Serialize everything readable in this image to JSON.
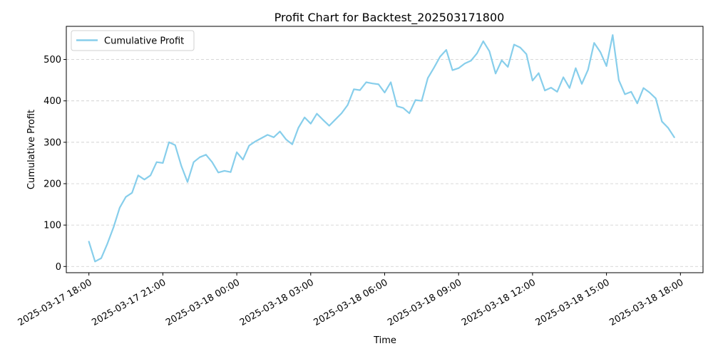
{
  "chart_data": {
    "type": "line",
    "title": "Profit Chart for Backtest_202503171800",
    "xlabel": "Time",
    "ylabel": "Cumulative Profit",
    "legend": {
      "position": "top-left",
      "entries": [
        "Cumulative Profit"
      ]
    },
    "grid": {
      "y": true,
      "x": false,
      "style": "dashed"
    },
    "colors": {
      "series": "#87ceeb",
      "grid": "#cccccc",
      "axis": "#000000"
    },
    "x_ticks": [
      "2025-03-17 18:00",
      "2025-03-17 21:00",
      "2025-03-18 00:00",
      "2025-03-18 03:00",
      "2025-03-18 06:00",
      "2025-03-18 09:00",
      "2025-03-18 12:00",
      "2025-03-18 15:00",
      "2025-03-18 18:00"
    ],
    "y_ticks": [
      0,
      100,
      200,
      300,
      400,
      500
    ],
    "xlim": [
      "2025-03-17 17:05",
      "2025-03-18 18:55"
    ],
    "ylim": [
      -15,
      580
    ],
    "series": [
      {
        "name": "Cumulative Profit",
        "x": [
          "2025-03-17 18:00",
          "2025-03-17 18:15",
          "2025-03-17 18:30",
          "2025-03-17 18:45",
          "2025-03-17 19:00",
          "2025-03-17 19:15",
          "2025-03-17 19:30",
          "2025-03-17 19:45",
          "2025-03-17 20:00",
          "2025-03-17 20:15",
          "2025-03-17 20:30",
          "2025-03-17 20:45",
          "2025-03-17 21:00",
          "2025-03-17 21:15",
          "2025-03-17 21:30",
          "2025-03-17 21:45",
          "2025-03-17 22:00",
          "2025-03-17 22:15",
          "2025-03-17 22:30",
          "2025-03-17 22:45",
          "2025-03-17 23:00",
          "2025-03-17 23:15",
          "2025-03-17 23:30",
          "2025-03-17 23:45",
          "2025-03-18 00:00",
          "2025-03-18 00:15",
          "2025-03-18 00:30",
          "2025-03-18 00:45",
          "2025-03-18 01:00",
          "2025-03-18 01:15",
          "2025-03-18 01:30",
          "2025-03-18 01:45",
          "2025-03-18 02:00",
          "2025-03-18 02:15",
          "2025-03-18 02:30",
          "2025-03-18 02:45",
          "2025-03-18 03:00",
          "2025-03-18 03:15",
          "2025-03-18 03:30",
          "2025-03-18 03:45",
          "2025-03-18 04:00",
          "2025-03-18 04:15",
          "2025-03-18 04:30",
          "2025-03-18 04:45",
          "2025-03-18 05:00",
          "2025-03-18 05:15",
          "2025-03-18 05:30",
          "2025-03-18 05:45",
          "2025-03-18 06:00",
          "2025-03-18 06:15",
          "2025-03-18 06:30",
          "2025-03-18 06:45",
          "2025-03-18 07:00",
          "2025-03-18 07:15",
          "2025-03-18 07:30",
          "2025-03-18 07:45",
          "2025-03-18 08:00",
          "2025-03-18 08:15",
          "2025-03-18 08:30",
          "2025-03-18 08:45",
          "2025-03-18 09:00",
          "2025-03-18 09:15",
          "2025-03-18 09:30",
          "2025-03-18 09:45",
          "2025-03-18 10:00",
          "2025-03-18 10:15",
          "2025-03-18 10:30",
          "2025-03-18 10:45",
          "2025-03-18 11:00",
          "2025-03-18 11:15",
          "2025-03-18 11:30",
          "2025-03-18 11:45",
          "2025-03-18 12:00",
          "2025-03-18 12:15",
          "2025-03-18 12:30",
          "2025-03-18 12:45",
          "2025-03-18 13:00",
          "2025-03-18 13:15",
          "2025-03-18 13:30",
          "2025-03-18 13:45",
          "2025-03-18 14:00",
          "2025-03-18 14:15",
          "2025-03-18 14:30",
          "2025-03-18 14:45",
          "2025-03-18 15:00",
          "2025-03-18 15:15",
          "2025-03-18 15:30",
          "2025-03-18 15:45",
          "2025-03-18 16:00",
          "2025-03-18 16:15",
          "2025-03-18 16:30",
          "2025-03-18 16:45",
          "2025-03-18 17:00",
          "2025-03-18 17:15",
          "2025-03-18 17:30",
          "2025-03-18 17:45"
        ],
        "values": [
          60,
          12,
          20,
          55,
          95,
          142,
          168,
          178,
          220,
          210,
          220,
          252,
          250,
          300,
          293,
          243,
          204,
          252,
          264,
          270,
          252,
          227,
          231,
          228,
          276,
          258,
          292,
          302,
          310,
          318,
          312,
          326,
          307,
          295,
          335,
          360,
          345,
          369,
          354,
          340,
          355,
          370,
          390,
          428,
          426,
          445,
          442,
          440,
          420,
          445,
          387,
          383,
          370,
          402,
          400,
          455,
          480,
          507,
          523,
          474,
          479,
          490,
          497,
          515,
          544,
          520,
          466,
          498,
          482,
          536,
          529,
          513,
          449,
          467,
          425,
          432,
          422,
          457,
          431,
          479,
          441,
          475,
          540,
          518,
          484,
          559,
          450,
          416,
          422,
          394,
          431,
          420,
          406,
          350,
          335,
          312
        ]
      }
    ]
  }
}
